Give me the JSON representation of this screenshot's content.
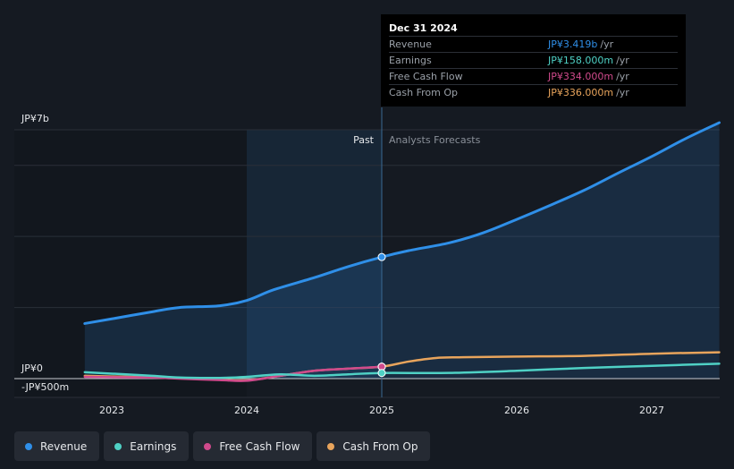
{
  "colors": {
    "background": "#151a22",
    "past_band": "#1b3550",
    "revenue": "#2f8fe8",
    "earnings": "#4fd1c5",
    "free_cash_flow": "#d04a8c",
    "cash_from_op": "#e8a45c"
  },
  "tooltip": {
    "date": "Dec 31 2024",
    "rows": [
      {
        "label": "Revenue",
        "value": "JP¥3.419b",
        "unit": "/yr",
        "color": "#2f8fe8"
      },
      {
        "label": "Earnings",
        "value": "JP¥158.000m",
        "unit": "/yr",
        "color": "#4fd1c5"
      },
      {
        "label": "Free Cash Flow",
        "value": "JP¥334.000m",
        "unit": "/yr",
        "color": "#d04a8c"
      },
      {
        "label": "Cash From Op",
        "value": "JP¥336.000m",
        "unit": "/yr",
        "color": "#e8a45c"
      }
    ]
  },
  "legend": [
    {
      "label": "Revenue",
      "color": "#2f8fe8"
    },
    {
      "label": "Earnings",
      "color": "#4fd1c5"
    },
    {
      "label": "Free Cash Flow",
      "color": "#d04a8c"
    },
    {
      "label": "Cash From Op",
      "color": "#e8a45c"
    }
  ],
  "chart_data": {
    "type": "line",
    "title": "",
    "divider_x": 2025.0,
    "past_start": 2024.0,
    "past_label": "Past",
    "forecast_label": "Analysts Forecasts",
    "y_top_label": "JP¥7b",
    "y_zero_label": "JP¥0",
    "y_bottom_label": "-JP¥500m",
    "ylim": [
      -0.5,
      7.0
    ],
    "xlim": [
      2022.6,
      2027.5
    ],
    "x_ticks": [
      {
        "label": "2023",
        "value": 2023.0
      },
      {
        "label": "2024",
        "value": 2024.0
      },
      {
        "label": "2025",
        "value": 2025.0
      },
      {
        "label": "2026",
        "value": 2026.0
      },
      {
        "label": "2027",
        "value": 2027.0
      }
    ],
    "highlight_x": 2025.0,
    "series": [
      {
        "name": "Revenue",
        "key": "revenue",
        "area": true,
        "x": [
          2022.8,
          2023.0,
          2023.3,
          2023.5,
          2023.8,
          2024.0,
          2024.2,
          2024.5,
          2024.75,
          2025.0,
          2025.2,
          2025.5,
          2025.75,
          2026.0,
          2026.25,
          2026.5,
          2026.75,
          2027.0,
          2027.25,
          2027.5
        ],
        "values": [
          1.55,
          1.68,
          1.88,
          2.0,
          2.05,
          2.2,
          2.5,
          2.84,
          3.15,
          3.42,
          3.6,
          3.82,
          4.1,
          4.48,
          4.88,
          5.3,
          5.78,
          6.25,
          6.75,
          7.2
        ]
      },
      {
        "name": "Earnings",
        "key": "earnings",
        "area": false,
        "x": [
          2022.8,
          2023.0,
          2023.3,
          2023.5,
          2023.8,
          2024.0,
          2024.25,
          2024.5,
          2024.75,
          2025.0,
          2025.5,
          2026.0,
          2026.5,
          2027.0,
          2027.5
        ],
        "values": [
          0.18,
          0.14,
          0.08,
          0.03,
          0.02,
          0.05,
          0.12,
          0.08,
          0.12,
          0.158,
          0.16,
          0.22,
          0.3,
          0.36,
          0.42
        ]
      },
      {
        "name": "Free Cash Flow",
        "key": "free_cash_flow",
        "area": false,
        "x": [
          2022.8,
          2023.0,
          2023.3,
          2023.5,
          2023.8,
          2024.0,
          2024.25,
          2024.5,
          2024.75,
          2025.0
        ],
        "values": [
          0.05,
          0.04,
          0.03,
          0.0,
          -0.04,
          -0.06,
          0.08,
          0.22,
          0.28,
          0.334
        ]
      },
      {
        "name": "Cash From Op",
        "key": "cash_from_op",
        "area": false,
        "x": [
          2022.8,
          2023.0,
          2023.3,
          2023.5,
          2023.8,
          2024.0,
          2024.25,
          2024.5,
          2024.75,
          2025.0,
          2025.2,
          2025.4,
          2025.6,
          2026.0,
          2026.5,
          2027.0,
          2027.5
        ],
        "values": [
          0.08,
          0.06,
          0.04,
          0.02,
          -0.03,
          -0.05,
          0.08,
          0.22,
          0.28,
          0.336,
          0.48,
          0.58,
          0.6,
          0.62,
          0.64,
          0.7,
          0.74
        ]
      }
    ]
  }
}
